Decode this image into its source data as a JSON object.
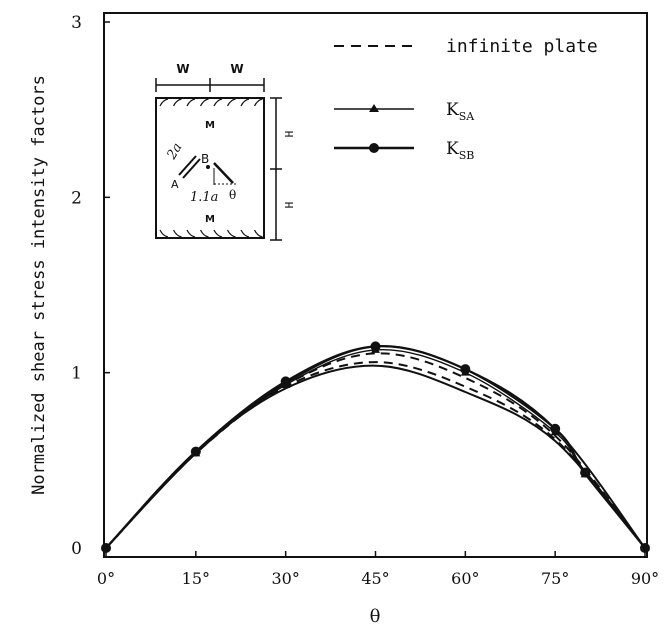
{
  "chart_data": {
    "type": "line",
    "xlabel": "θ",
    "ylabel": "Normalized shear stress intensity factors",
    "xlim": [
      0,
      90
    ],
    "ylim": [
      0,
      3
    ],
    "x_ticks": [
      0,
      15,
      30,
      45,
      60,
      75,
      90
    ],
    "x_tick_labels": [
      "0°",
      "15°",
      "30°",
      "45°",
      "60°",
      "75°",
      "90°"
    ],
    "y_ticks": [
      0,
      1,
      2,
      3
    ],
    "y_tick_labels": [
      "0",
      "1",
      "2",
      "3"
    ],
    "grid": false,
    "legend_position": "top-right",
    "legend": [
      {
        "label": "infinite plate",
        "style": "dashed"
      },
      {
        "label": "K",
        "sub": "SA",
        "style": "solid-triangle"
      },
      {
        "label": "K",
        "sub": "SB",
        "style": "solid-circle"
      }
    ],
    "curves": [
      {
        "style": "dashed",
        "x": [
          0,
          15,
          30,
          45,
          60,
          75,
          90
        ],
        "y": [
          0,
          0.54,
          0.92,
          1.06,
          0.92,
          0.62,
          0
        ]
      },
      {
        "style": "dashed",
        "x": [
          0,
          15,
          30,
          45,
          60,
          75,
          90
        ],
        "y": [
          0,
          0.54,
          0.93,
          1.11,
          0.97,
          0.64,
          0
        ]
      },
      {
        "style": "solid",
        "x": [
          0,
          15,
          30,
          45,
          60,
          75,
          90
        ],
        "y": [
          0,
          0.54,
          0.94,
          1.15,
          1.02,
          0.68,
          0
        ]
      },
      {
        "style": "solid",
        "x": [
          0,
          15,
          30,
          45,
          60,
          75,
          90
        ],
        "y": [
          0,
          0.55,
          0.91,
          1.04,
          0.89,
          0.61,
          0
        ]
      }
    ],
    "series": [
      {
        "name": "K",
        "sub": "SA",
        "marker": "triangle",
        "x": [
          0,
          15,
          30,
          45,
          60,
          75,
          80,
          90
        ],
        "y": [
          0,
          0.54,
          0.93,
          1.13,
          1.0,
          0.66,
          0.42,
          0
        ]
      },
      {
        "name": "K",
        "sub": "SB",
        "marker": "circle",
        "x": [
          0,
          15,
          30,
          45,
          60,
          75,
          80,
          90
        ],
        "y": [
          0,
          0.55,
          0.95,
          1.15,
          1.02,
          0.68,
          0.43,
          0
        ]
      }
    ]
  },
  "inset": {
    "labels": {
      "w1": "W",
      "w2": "W",
      "m_top": "M",
      "m_bottom": "M",
      "h1": "H",
      "h2": "H",
      "crack_length": "2a",
      "point_a": "A",
      "point_b": "B",
      "offset": "1.1a",
      "angle": "θ"
    }
  }
}
